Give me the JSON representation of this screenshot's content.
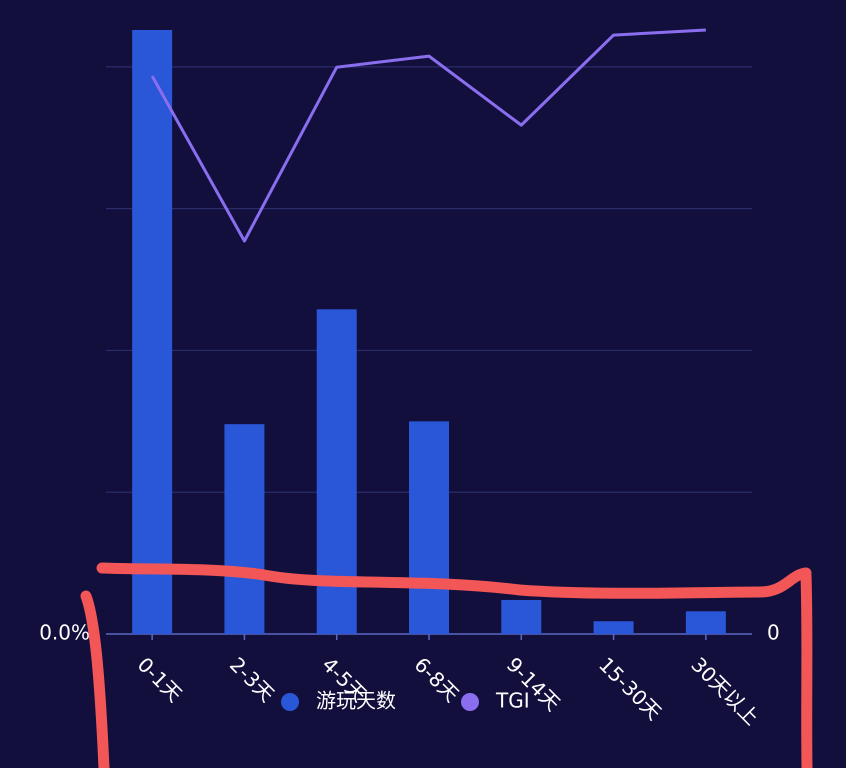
{
  "chart_data": {
    "type": "bar-line",
    "categories": [
      "0-1天",
      "2-3天",
      "4-5天",
      "6-8天",
      "9-14天",
      "15-30天",
      "30天以上"
    ],
    "series": [
      {
        "name": "游玩天数",
        "type": "bar",
        "color": "#2a56d8",
        "values": [
          42.6,
          14.8,
          22.9,
          15.0,
          2.4,
          0.9,
          1.6
        ]
      },
      {
        "name": "TGI",
        "type": "line",
        "axis": "y2",
        "color": "#8b6ef0",
        "values": [
          196.5,
          138.4,
          199.6,
          203.5,
          179.2,
          210.9,
          212.7
        ]
      }
    ],
    "ylim": [
      0,
      42.6
    ],
    "yticks": [
      {
        "value": 0,
        "label": "0.0%"
      },
      {
        "value": 10,
        "label": null
      },
      {
        "value": 20,
        "label": null
      },
      {
        "value": 30,
        "label": null
      },
      {
        "value": 40,
        "label": null
      }
    ],
    "y2lim": [
      0,
      212.7
    ],
    "y2ticks": [
      0
    ],
    "grid": true,
    "legend": "bottom"
  }
}
